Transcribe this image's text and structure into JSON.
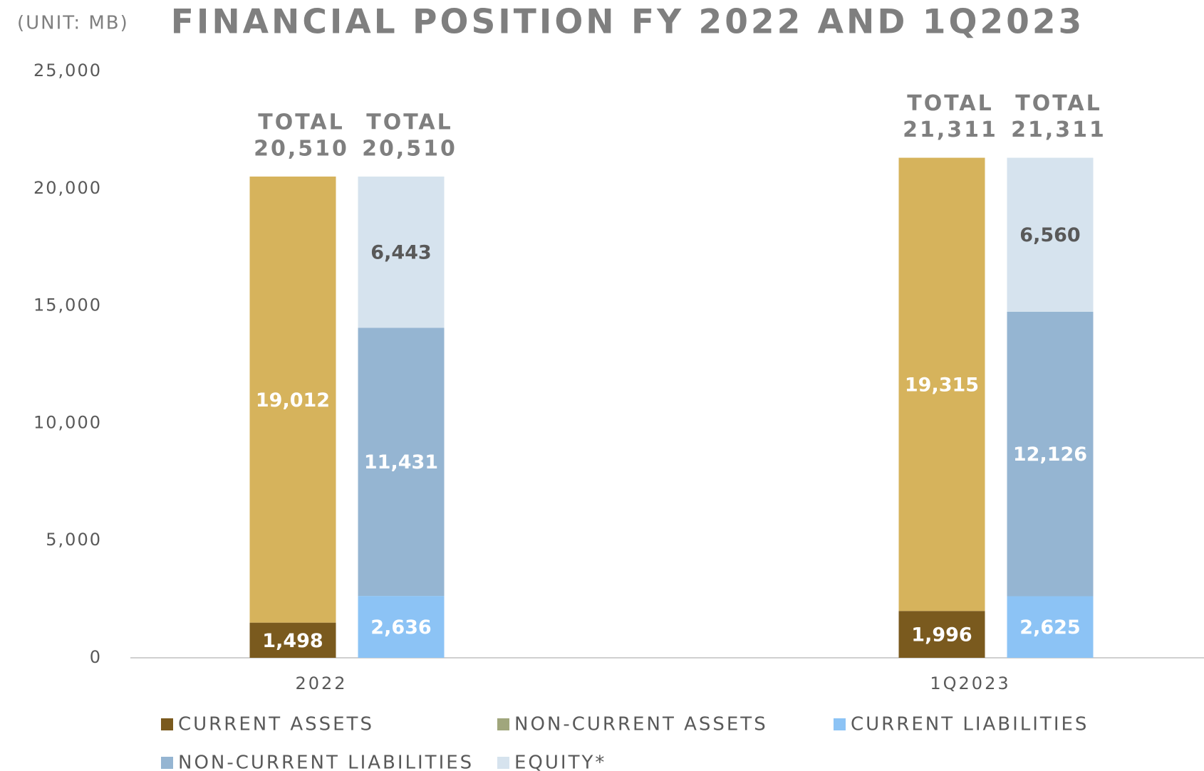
{
  "chart_data": {
    "type": "stacked_bar",
    "title": "FINANCIAL POSITION FY 2022 AND 1Q2023",
    "unit_label": "(UNIT: MB)",
    "categories": [
      "2022",
      "1Q2023"
    ],
    "stacks": [
      "assets",
      "liabilities"
    ],
    "series": [
      {
        "name": "CURRENT ASSETS",
        "stack": "assets",
        "color": "#7a5a1e",
        "legend_color": "#7a5a1e",
        "label_color": "#ffffff",
        "values": [
          1498,
          1996
        ],
        "value_labels": [
          "1,498",
          "1,996"
        ]
      },
      {
        "name": "NON-CURRENT ASSETS",
        "stack": "assets",
        "color": "#d6b35c",
        "legend_color": "#a0a67c",
        "label_color": "#ffffff",
        "values": [
          19012,
          19315
        ],
        "value_labels": [
          "19,012",
          "19,315"
        ]
      },
      {
        "name": "CURRENT LIABILITIES",
        "stack": "liabilities",
        "color": "#8cc3f5",
        "legend_color": "#8cc3f5",
        "label_color": "#ffffff",
        "values": [
          2636,
          2625
        ],
        "value_labels": [
          "2,636",
          "2,625"
        ]
      },
      {
        "name": "NON-CURRENT LIABILITIES",
        "stack": "liabilities",
        "color": "#95b5d2",
        "legend_color": "#95b5d2",
        "label_color": "#ffffff",
        "values": [
          11431,
          12126
        ],
        "value_labels": [
          "11,431",
          "12,126"
        ]
      },
      {
        "name": "EQUITY*",
        "stack": "liabilities",
        "color": "#d6e3ee",
        "legend_color": "#d6e3ee",
        "label_color": "#595959",
        "values": [
          6443,
          6560
        ],
        "value_labels": [
          "6,443",
          "6,560"
        ]
      }
    ],
    "total_text": "TOTAL",
    "totals": [
      {
        "category": 0,
        "stack": "assets",
        "value": 20510,
        "label": "20,510"
      },
      {
        "category": 0,
        "stack": "liabilities",
        "value": 20510,
        "label": "20,510"
      },
      {
        "category": 1,
        "stack": "assets",
        "value": 21311,
        "label": "21,311"
      },
      {
        "category": 1,
        "stack": "liabilities",
        "value": 21311,
        "label": "21,311"
      }
    ],
    "ylim": [
      0,
      25000
    ],
    "yticks": [
      {
        "value": 0,
        "label": "0"
      },
      {
        "value": 5000,
        "label": "5,000"
      },
      {
        "value": 10000,
        "label": "10,000"
      },
      {
        "value": 15000,
        "label": "15,000"
      },
      {
        "value": 20000,
        "label": "20,000"
      },
      {
        "value": 25000,
        "label": "25,000"
      }
    ],
    "grid": false
  }
}
